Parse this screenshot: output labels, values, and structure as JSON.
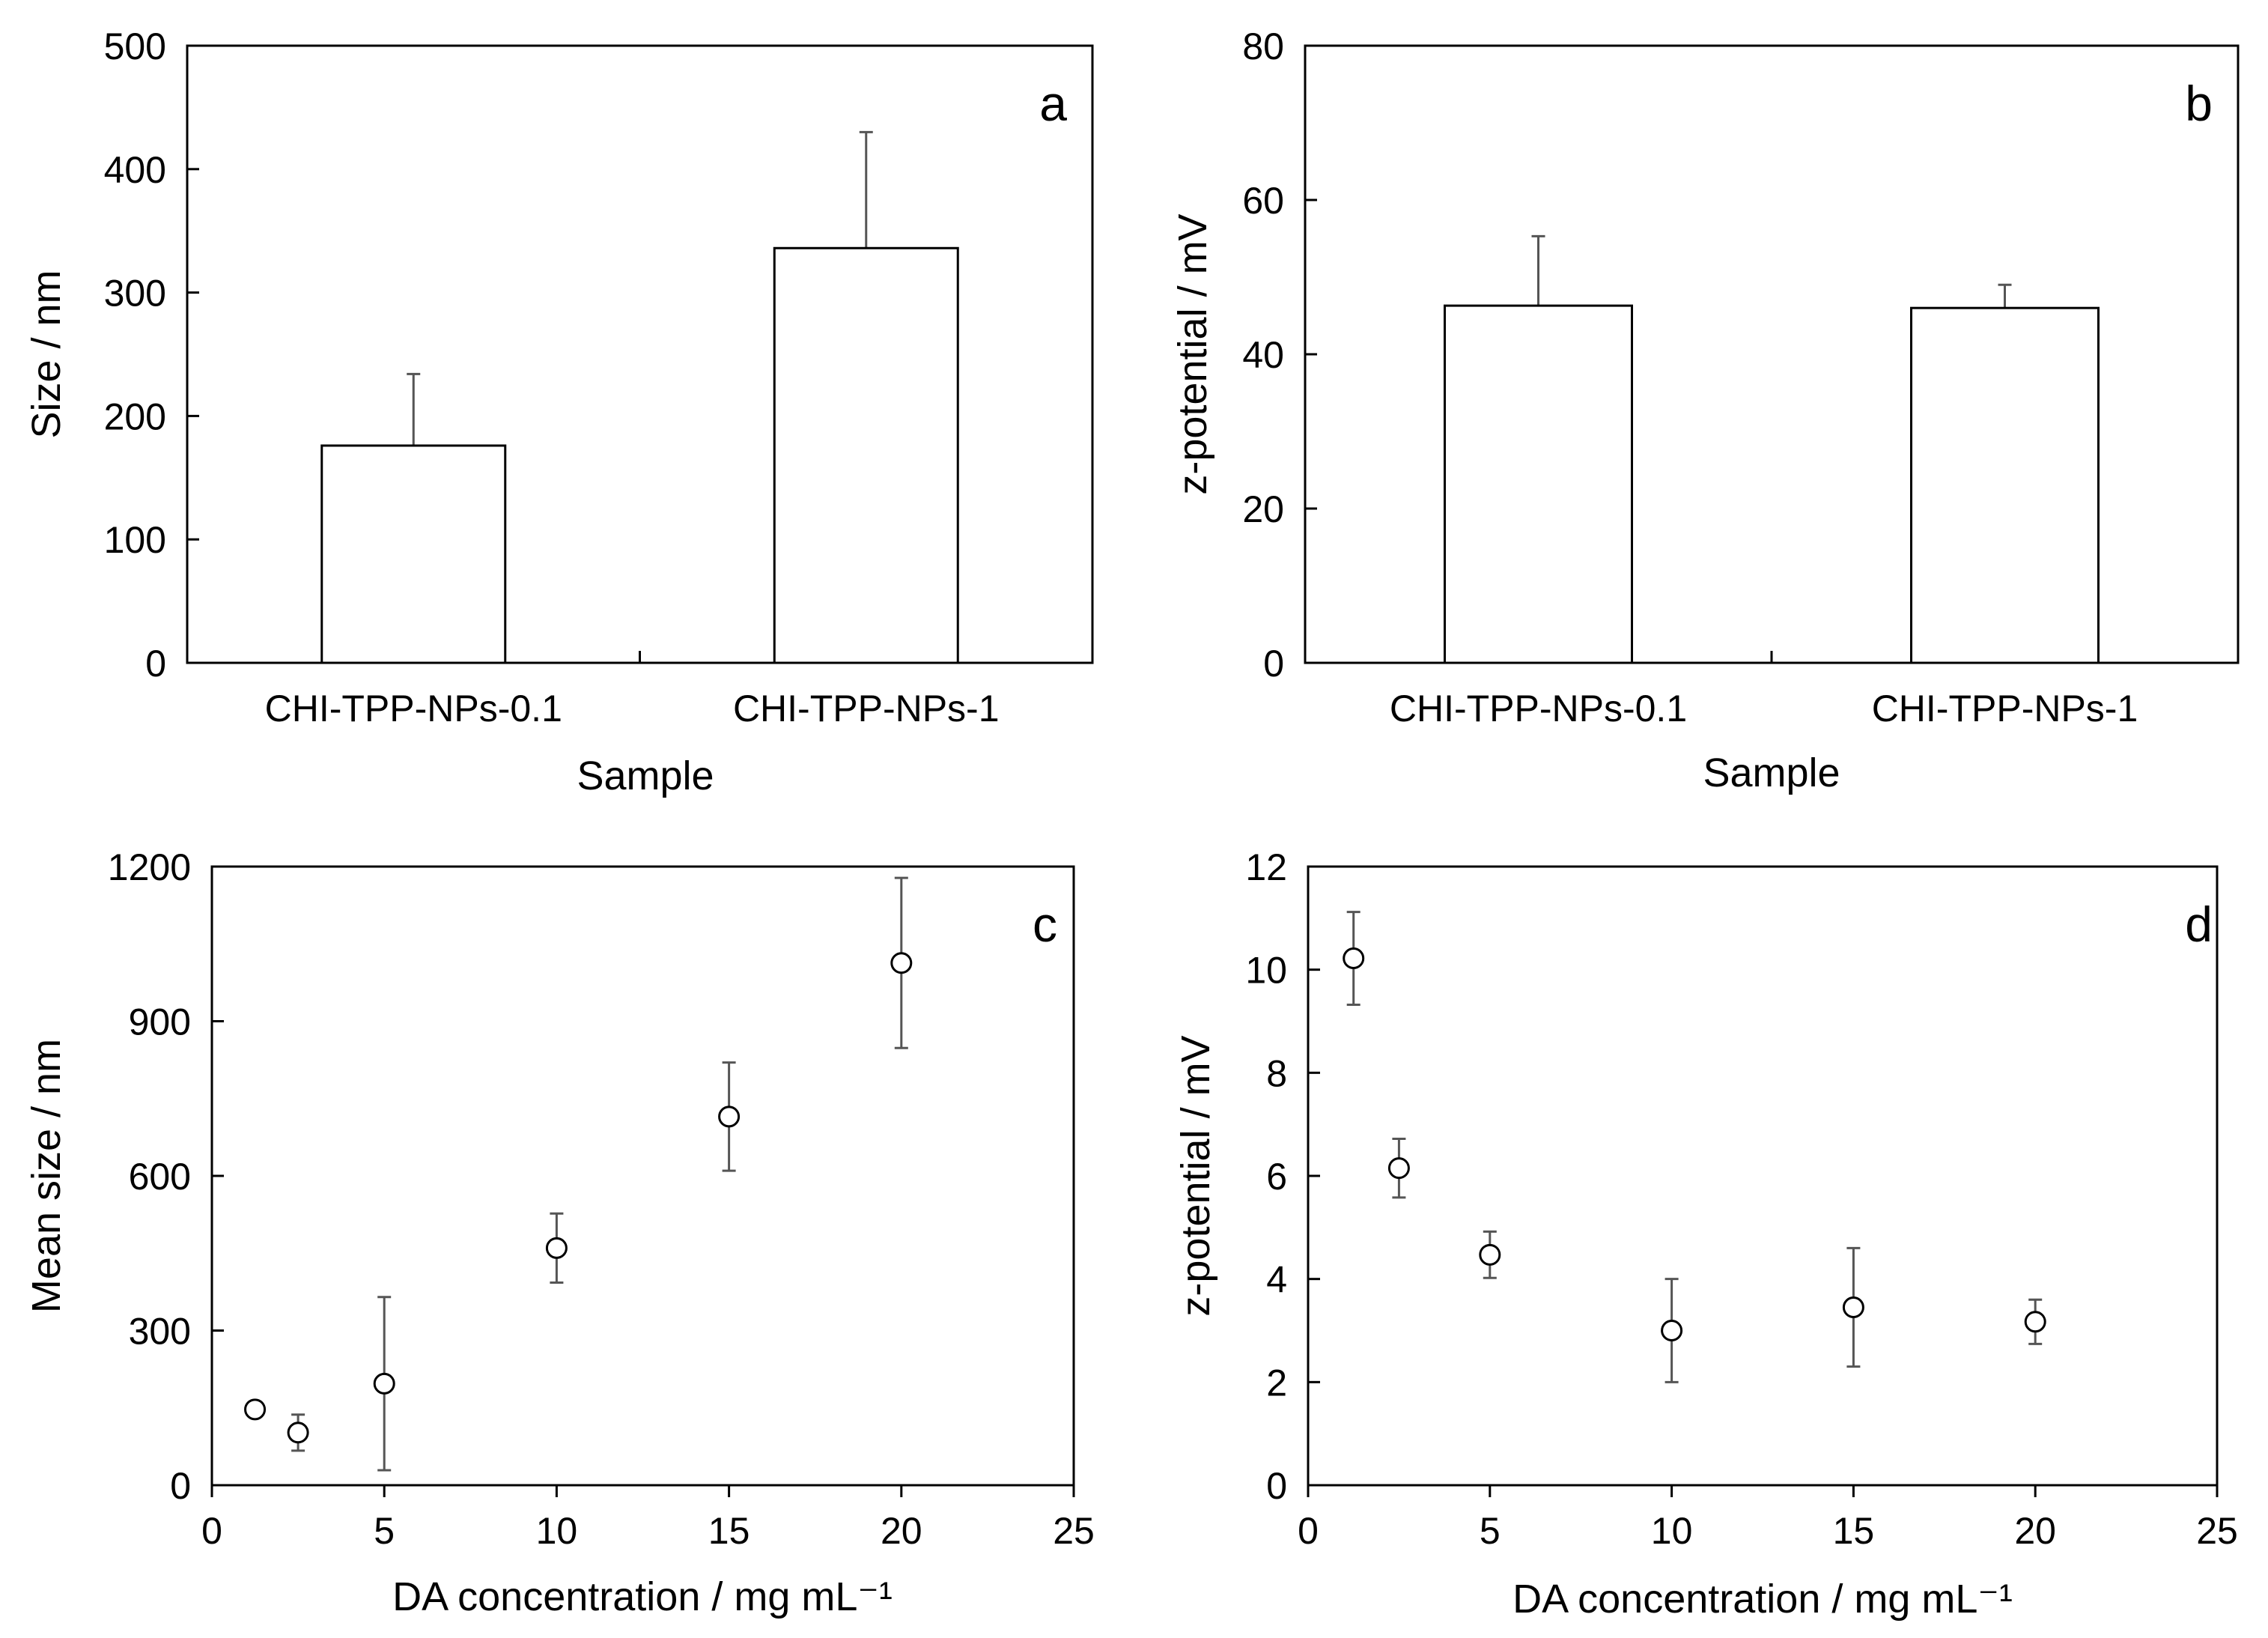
{
  "figure": {
    "colors": {
      "axis": "#000000",
      "bar_fill": "#ffffff",
      "error_bar": "#555555",
      "marker": "#000000"
    }
  },
  "chart_data": [
    {
      "id": "a",
      "panel_label": "a",
      "type": "bar",
      "xlabel": "Sample",
      "ylabel": "Size / nm",
      "categories": [
        "CHI-TPP-NPs-0.1",
        "CHI-TPP-NPs-1"
      ],
      "series": [
        {
          "name": "Size",
          "values": [
            176,
            336
          ],
          "errors": [
            58,
            94
          ]
        }
      ],
      "ylim": [
        0,
        500
      ],
      "yticks": [
        0,
        100,
        200,
        300,
        400,
        500
      ]
    },
    {
      "id": "b",
      "panel_label": "b",
      "type": "bar",
      "xlabel": "Sample",
      "ylabel": "z-potential / mV",
      "categories": [
        "CHI-TPP-NPs-0.1",
        "CHI-TPP-NPs-1"
      ],
      "series": [
        {
          "name": "z-potential",
          "values": [
            46.3,
            46.0
          ],
          "errors": [
            9.0,
            3.0
          ]
        }
      ],
      "ylim": [
        0,
        80
      ],
      "yticks": [
        0,
        20,
        40,
        60,
        80
      ]
    },
    {
      "id": "c",
      "panel_label": "c",
      "type": "scatter",
      "xlabel": "DA concentration / mg mL⁻¹",
      "ylabel": "Mean size / nm",
      "series": [
        {
          "name": "Mean size",
          "x": [
            1.25,
            2.5,
            5,
            10,
            15,
            20
          ],
          "y": [
            147,
            102,
            197,
            460,
            715,
            1013
          ],
          "errors": [
            8,
            35,
            168,
            67,
            105,
            165
          ]
        }
      ],
      "xlim": [
        0,
        25
      ],
      "xticks": [
        0,
        5,
        10,
        15,
        20,
        25
      ],
      "ylim": [
        0,
        1200
      ],
      "yticks": [
        0,
        300,
        600,
        900,
        1200
      ]
    },
    {
      "id": "d",
      "panel_label": "d",
      "type": "scatter",
      "xlabel": "DA concentration / mg mL⁻¹",
      "ylabel": "z-potential / mV",
      "series": [
        {
          "name": "z-potential",
          "x": [
            1.25,
            2.5,
            5,
            10,
            15,
            20
          ],
          "y": [
            10.22,
            6.15,
            4.47,
            3.0,
            3.45,
            3.17
          ],
          "errors": [
            0.9,
            0.57,
            0.45,
            1.0,
            1.15,
            0.43
          ]
        }
      ],
      "xlim": [
        0,
        25
      ],
      "xticks": [
        0,
        5,
        10,
        15,
        20,
        25
      ],
      "ylim": [
        0,
        12
      ],
      "yticks": [
        0,
        2,
        4,
        6,
        8,
        10,
        12
      ]
    }
  ]
}
